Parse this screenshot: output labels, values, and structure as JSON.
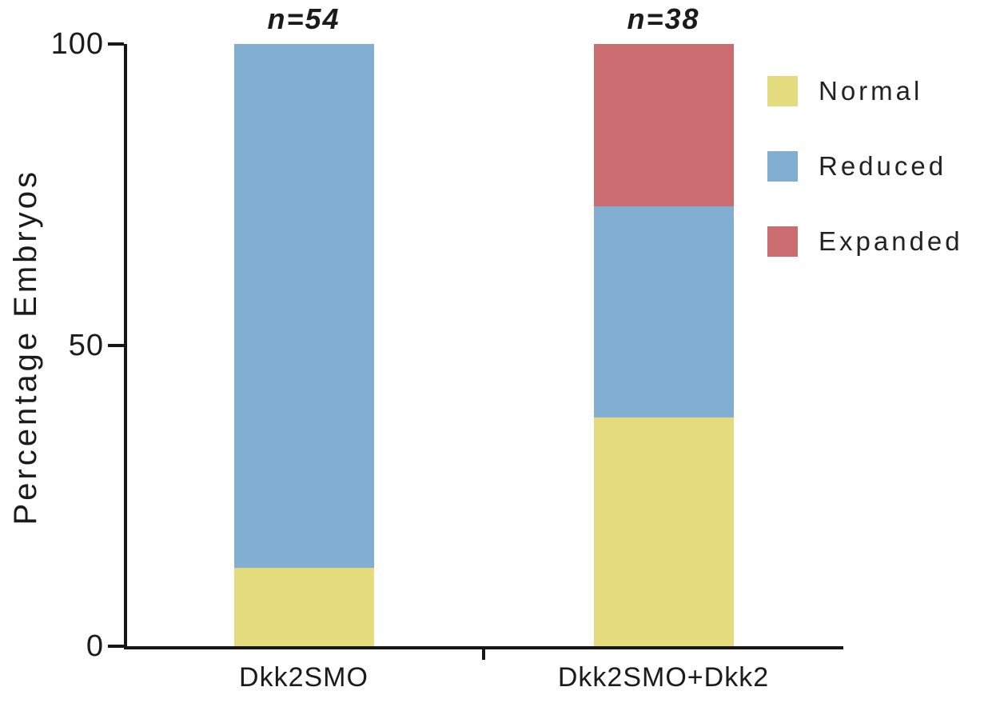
{
  "chart_data": {
    "type": "bar",
    "stacked": true,
    "title": "",
    "xlabel": "",
    "ylabel": "Percentage Embryos",
    "ylim": [
      0,
      100
    ],
    "yticks": [
      0,
      50,
      100
    ],
    "grid": false,
    "legend_position": "upper right",
    "categories": [
      "Dkk2SMO",
      "Dkk2SMO+Dkk2"
    ],
    "n_labels": [
      "n=54",
      "n=38"
    ],
    "series": [
      {
        "name": "Normal",
        "color": "#e3db7e",
        "values": [
          13,
          38
        ]
      },
      {
        "name": "Reduced",
        "color": "#82aed2",
        "values": [
          87,
          35
        ]
      },
      {
        "name": "Expanded",
        "color": "#cb6d70",
        "values": [
          0,
          27
        ]
      }
    ],
    "axis_color": "#161616"
  }
}
